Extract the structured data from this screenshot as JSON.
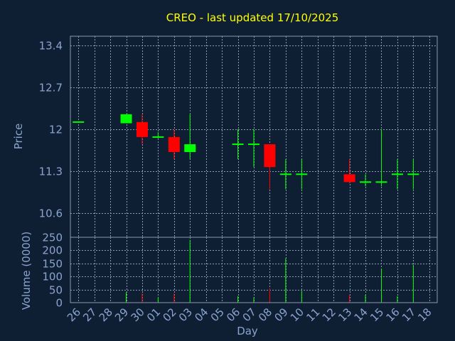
{
  "chart_data": {
    "type": "candlestick",
    "title": "CREO - last updated 17/10/2025",
    "xlabel": "Day",
    "price_panel": {
      "ylabel": "Price",
      "ylim": [
        10.2,
        13.55
      ],
      "yticks": [
        "13.4",
        "12.7",
        "12",
        "11.3",
        "10.6"
      ],
      "ytick_values": [
        13.4,
        12.7,
        12.0,
        11.3,
        10.6
      ]
    },
    "volume_panel": {
      "ylabel": "Volume (0000)",
      "ylim": [
        0,
        250
      ],
      "yticks": [
        "250",
        "200",
        "150",
        "100",
        "50",
        "0"
      ],
      "ytick_values": [
        250,
        200,
        150,
        100,
        50,
        0
      ]
    },
    "x_ticks": [
      "26",
      "27",
      "28",
      "29",
      "30",
      "01",
      "02",
      "03",
      "04",
      "05",
      "06",
      "07",
      "08",
      "09",
      "10",
      "11",
      "12",
      "13",
      "14",
      "15",
      "16",
      "17",
      "18"
    ],
    "up_color": "#00ff00",
    "down_color": "#ff0000",
    "candles": [
      {
        "day": "26",
        "open": 12.12,
        "high": 12.12,
        "low": 12.12,
        "close": 12.12,
        "volume": 0
      },
      {
        "day": "29",
        "open": 12.1,
        "high": 12.25,
        "low": 12.1,
        "close": 12.25,
        "volume": 40
      },
      {
        "day": "30",
        "open": 12.12,
        "high": 12.25,
        "low": 11.75,
        "close": 11.87,
        "volume": 35
      },
      {
        "day": "01",
        "open": 11.87,
        "high": 11.95,
        "low": 11.85,
        "close": 11.87,
        "volume": 20
      },
      {
        "day": "02",
        "open": 11.87,
        "high": 12.0,
        "low": 11.5,
        "close": 11.62,
        "volume": 35
      },
      {
        "day": "03",
        "open": 11.62,
        "high": 12.25,
        "low": 11.5,
        "close": 11.75,
        "volume": 240
      },
      {
        "day": "06",
        "open": 11.75,
        "high": 12.0,
        "low": 11.5,
        "close": 11.75,
        "volume": 25
      },
      {
        "day": "07",
        "open": 11.75,
        "high": 12.0,
        "low": 11.37,
        "close": 11.75,
        "volume": 20
      },
      {
        "day": "08",
        "open": 11.75,
        "high": 11.75,
        "low": 11.0,
        "close": 11.37,
        "volume": 55
      },
      {
        "day": "09",
        "open": 11.25,
        "high": 11.5,
        "low": 11.0,
        "close": 11.25,
        "volume": 170
      },
      {
        "day": "10",
        "open": 11.25,
        "high": 11.5,
        "low": 11.0,
        "close": 11.25,
        "volume": 45
      },
      {
        "day": "13",
        "open": 11.25,
        "high": 11.5,
        "low": 11.1,
        "close": 11.12,
        "volume": 30
      },
      {
        "day": "14",
        "open": 11.12,
        "high": 11.25,
        "low": 11.05,
        "close": 11.12,
        "volume": 30
      },
      {
        "day": "15",
        "open": 11.12,
        "high": 12.0,
        "low": 11.05,
        "close": 11.12,
        "volume": 130
      },
      {
        "day": "16",
        "open": 11.25,
        "high": 11.5,
        "low": 11.0,
        "close": 11.25,
        "volume": 25
      },
      {
        "day": "17",
        "open": 11.25,
        "high": 11.5,
        "low": 11.0,
        "close": 11.25,
        "volume": 145
      }
    ]
  }
}
